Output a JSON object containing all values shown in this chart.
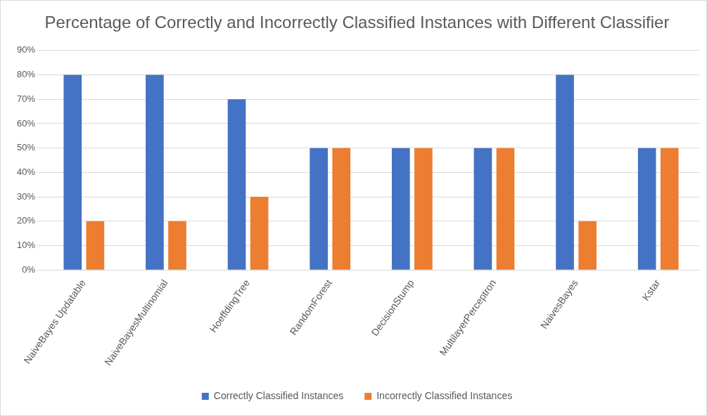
{
  "chart_data": {
    "type": "bar",
    "title": "Percentage of Correctly and Incorrectly Classified Instances with Different Classifier",
    "categories": [
      "NaiveBayes Updatable",
      "NaiveBayesMultinomial",
      "HoeffdingTree",
      "RandomForest",
      "DecisionStump",
      "MultilayerPerceptron",
      "NaivesBayes",
      "Kstar"
    ],
    "series": [
      {
        "name": "Correctly Classified Instances",
        "color": "#4472c4",
        "values": [
          80,
          80,
          70,
          50,
          50,
          50,
          80,
          50
        ]
      },
      {
        "name": "Incorrectly Classified Instances",
        "color": "#ed7d31",
        "values": [
          20,
          20,
          30,
          50,
          50,
          50,
          20,
          50
        ]
      }
    ],
    "ylim": [
      0,
      90
    ],
    "yticks": [
      {
        "value": 0,
        "label": "0%"
      },
      {
        "value": 10,
        "label": "10%"
      },
      {
        "value": 20,
        "label": "20%"
      },
      {
        "value": 30,
        "label": "30%"
      },
      {
        "value": 40,
        "label": "40%"
      },
      {
        "value": 50,
        "label": "50%"
      },
      {
        "value": 60,
        "label": "60%"
      },
      {
        "value": 70,
        "label": "70%"
      },
      {
        "value": 80,
        "label": "80%"
      },
      {
        "value": 90,
        "label": "90%"
      }
    ],
    "grid": "y",
    "legend": "bottom"
  }
}
